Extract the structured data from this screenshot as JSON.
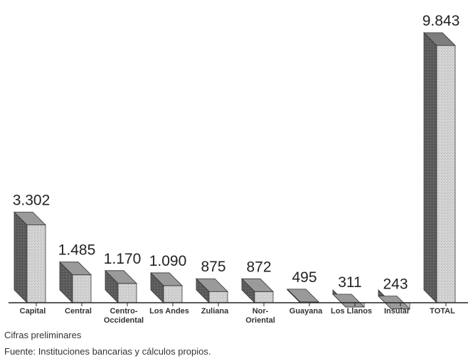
{
  "chart_data": {
    "type": "bar",
    "categories": [
      "Capital",
      "Central",
      "Centro-\nOccidental",
      "Los Andes",
      "Zuliana",
      "Nor-\nOriental",
      "Guayana",
      "Los Llanos",
      "Insular",
      "TOTAL"
    ],
    "values": [
      3302,
      1485,
      1170,
      1090,
      875,
      872,
      495,
      311,
      243,
      9843
    ],
    "value_labels": [
      "3.302",
      "1.485",
      "1.170",
      "1.090",
      "875",
      "872",
      "495",
      "311",
      "243",
      "9.843"
    ],
    "bar_style": "3d",
    "grid": false,
    "legend": "none"
  },
  "footnotes": {
    "note": "Cifras preliminares",
    "source": "Fuente: Instituciones bancarias y cálculos propios."
  },
  "colors": {
    "bar_front": "#cfcfcf",
    "bar_side": "#6a6a6a",
    "bar_top": "#8a8a8a",
    "axis": "#222222"
  }
}
